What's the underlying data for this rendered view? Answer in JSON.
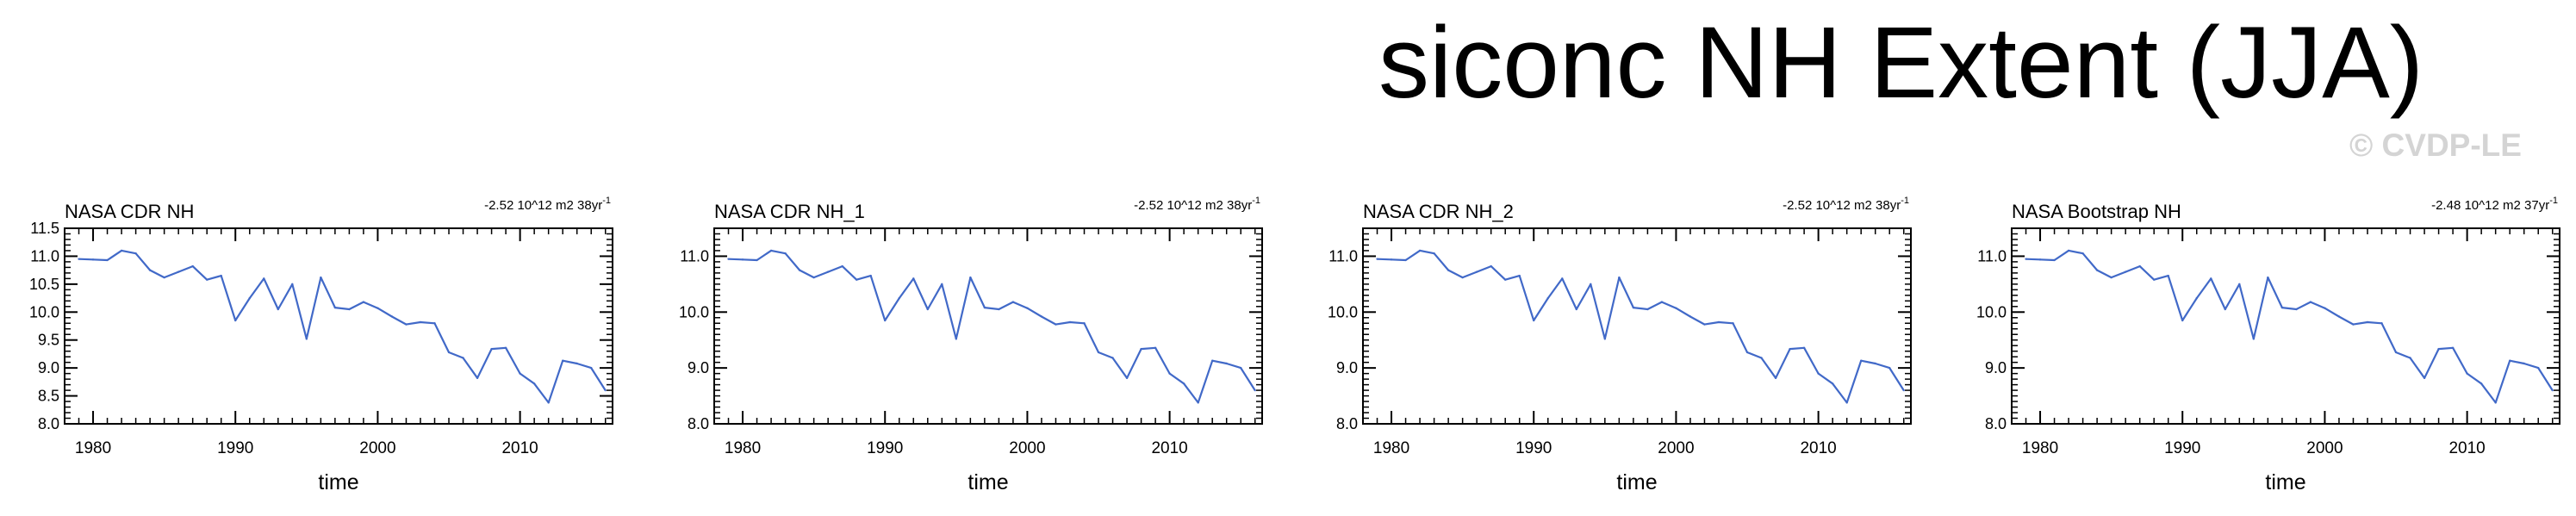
{
  "title": "siconc NH Extent (JJA)",
  "watermark": "© CVDP-LE",
  "line_color": "#4169c8",
  "chart_data": [
    {
      "type": "line",
      "panel_title": "NASA CDR NH",
      "trend_label": "-2.52 10^12 m2 38yr",
      "trend_exponent": "-1",
      "xlabel": "time",
      "ylabel": "",
      "xlim": [
        1978,
        2016.5
      ],
      "ylim": [
        8.0,
        11.5
      ],
      "xticks": [
        1980,
        1990,
        2000,
        2010
      ],
      "yticks": [
        8.0,
        8.5,
        9.0,
        9.5,
        10.0,
        10.5,
        11.0,
        11.5
      ],
      "ytick_labels": [
        "8.0",
        "8.5",
        "9.0",
        "9.5",
        "10.0",
        "10.5",
        "11.0",
        "11.5"
      ],
      "x": [
        1979,
        1980,
        1981,
        1982,
        1983,
        1984,
        1985,
        1986,
        1987,
        1988,
        1989,
        1990,
        1991,
        1992,
        1993,
        1994,
        1995,
        1996,
        1997,
        1998,
        1999,
        2000,
        2001,
        2002,
        2003,
        2004,
        2005,
        2006,
        2007,
        2008,
        2009,
        2010,
        2011,
        2012,
        2013,
        2014,
        2015,
        2016
      ],
      "values": [
        10.95,
        10.94,
        10.93,
        11.1,
        11.05,
        10.75,
        10.62,
        10.72,
        10.82,
        10.58,
        10.65,
        9.85,
        10.25,
        10.6,
        10.05,
        10.5,
        9.52,
        10.62,
        10.08,
        10.05,
        10.18,
        10.07,
        9.92,
        9.78,
        9.82,
        9.8,
        9.28,
        9.18,
        8.82,
        9.34,
        9.36,
        8.9,
        8.72,
        8.38,
        9.13,
        9.08,
        9.0,
        8.6
      ]
    },
    {
      "type": "line",
      "panel_title": "NASA CDR NH_1",
      "trend_label": "-2.52 10^12 m2 38yr",
      "trend_exponent": "-1",
      "xlabel": "time",
      "ylabel": "",
      "xlim": [
        1978,
        2016.5
      ],
      "ylim": [
        8.0,
        11.5
      ],
      "xticks": [
        1980,
        1990,
        2000,
        2010
      ],
      "yticks": [
        8.0,
        9.0,
        10.0,
        11.0
      ],
      "ytick_labels": [
        "8.0",
        "9.0",
        "10.0",
        "11.0"
      ],
      "x": [
        1979,
        1980,
        1981,
        1982,
        1983,
        1984,
        1985,
        1986,
        1987,
        1988,
        1989,
        1990,
        1991,
        1992,
        1993,
        1994,
        1995,
        1996,
        1997,
        1998,
        1999,
        2000,
        2001,
        2002,
        2003,
        2004,
        2005,
        2006,
        2007,
        2008,
        2009,
        2010,
        2011,
        2012,
        2013,
        2014,
        2015,
        2016
      ],
      "values": [
        10.95,
        10.94,
        10.93,
        11.1,
        11.05,
        10.75,
        10.62,
        10.72,
        10.82,
        10.58,
        10.65,
        9.85,
        10.25,
        10.6,
        10.05,
        10.5,
        9.52,
        10.62,
        10.08,
        10.05,
        10.18,
        10.07,
        9.92,
        9.78,
        9.82,
        9.8,
        9.28,
        9.18,
        8.82,
        9.34,
        9.36,
        8.9,
        8.72,
        8.38,
        9.13,
        9.08,
        9.0,
        8.6
      ]
    },
    {
      "type": "line",
      "panel_title": "NASA CDR NH_2",
      "trend_label": "-2.52 10^12 m2 38yr",
      "trend_exponent": "-1",
      "xlabel": "time",
      "ylabel": "",
      "xlim": [
        1978,
        2016.5
      ],
      "ylim": [
        8.0,
        11.5
      ],
      "xticks": [
        1980,
        1990,
        2000,
        2010
      ],
      "yticks": [
        8.0,
        9.0,
        10.0,
        11.0
      ],
      "ytick_labels": [
        "8.0",
        "9.0",
        "10.0",
        "11.0"
      ],
      "x": [
        1979,
        1980,
        1981,
        1982,
        1983,
        1984,
        1985,
        1986,
        1987,
        1988,
        1989,
        1990,
        1991,
        1992,
        1993,
        1994,
        1995,
        1996,
        1997,
        1998,
        1999,
        2000,
        2001,
        2002,
        2003,
        2004,
        2005,
        2006,
        2007,
        2008,
        2009,
        2010,
        2011,
        2012,
        2013,
        2014,
        2015,
        2016
      ],
      "values": [
        10.95,
        10.94,
        10.93,
        11.1,
        11.05,
        10.75,
        10.62,
        10.72,
        10.82,
        10.58,
        10.65,
        9.85,
        10.25,
        10.6,
        10.05,
        10.5,
        9.52,
        10.62,
        10.08,
        10.05,
        10.18,
        10.07,
        9.92,
        9.78,
        9.82,
        9.8,
        9.28,
        9.18,
        8.82,
        9.34,
        9.36,
        8.9,
        8.72,
        8.38,
        9.13,
        9.08,
        9.0,
        8.6
      ]
    },
    {
      "type": "line",
      "panel_title": "NASA Bootstrap NH",
      "trend_label": "-2.48 10^12 m2 37yr",
      "trend_exponent": "-1",
      "xlabel": "time",
      "ylabel": "",
      "xlim": [
        1978,
        2016.5
      ],
      "ylim": [
        8.0,
        11.5
      ],
      "xticks": [
        1980,
        1990,
        2000,
        2010
      ],
      "yticks": [
        8.0,
        9.0,
        10.0,
        11.0
      ],
      "ytick_labels": [
        "8.0",
        "9.0",
        "10.0",
        "11.0"
      ],
      "x": [
        1979,
        1980,
        1981,
        1982,
        1983,
        1984,
        1985,
        1986,
        1987,
        1988,
        1989,
        1990,
        1991,
        1992,
        1993,
        1994,
        1995,
        1996,
        1997,
        1998,
        1999,
        2000,
        2001,
        2002,
        2003,
        2004,
        2005,
        2006,
        2007,
        2008,
        2009,
        2010,
        2011,
        2012,
        2013,
        2014,
        2015,
        2016
      ],
      "values": [
        10.95,
        10.94,
        10.93,
        11.1,
        11.05,
        10.75,
        10.62,
        10.72,
        10.82,
        10.58,
        10.65,
        9.85,
        10.25,
        10.6,
        10.05,
        10.5,
        9.52,
        10.62,
        10.08,
        10.05,
        10.18,
        10.07,
        9.92,
        9.78,
        9.82,
        9.8,
        9.28,
        9.18,
        8.82,
        9.34,
        9.36,
        8.9,
        8.72,
        8.38,
        9.13,
        9.08,
        9.0,
        8.6
      ]
    }
  ]
}
